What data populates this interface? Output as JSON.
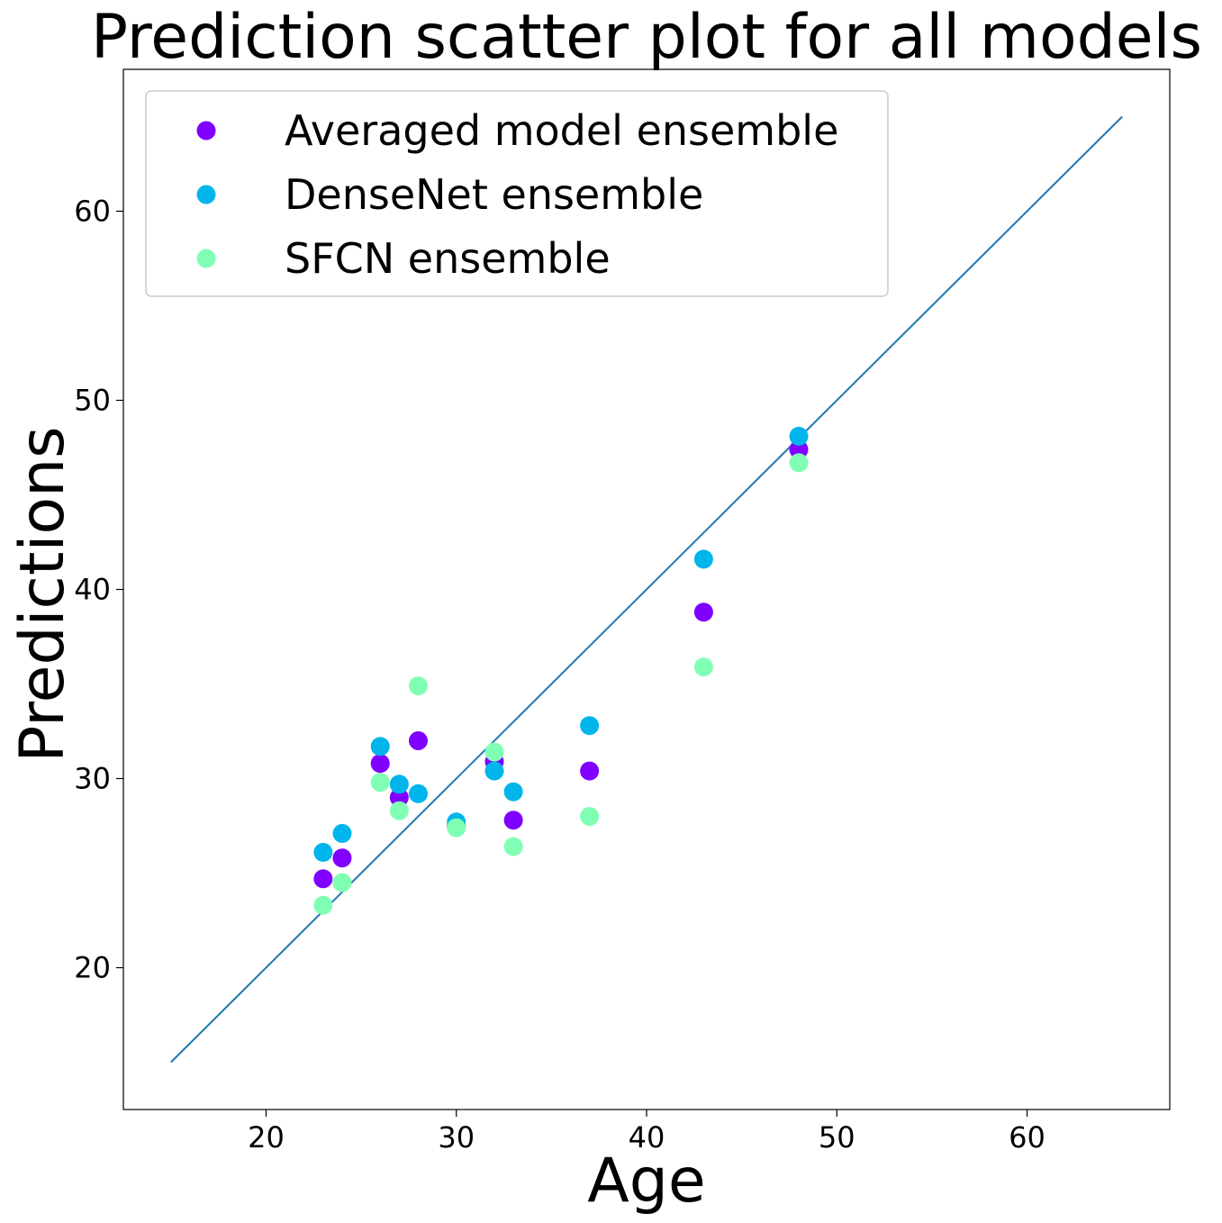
{
  "chart_data": {
    "type": "scatter",
    "title": "Prediction scatter plot for all models",
    "xlabel": "Age",
    "ylabel": "Predictions",
    "xlim": [
      12.5,
      67.5
    ],
    "ylim": [
      12.5,
      67.5
    ],
    "xticks": [
      20,
      30,
      40,
      50,
      60
    ],
    "yticks": [
      20,
      30,
      40,
      50,
      60
    ],
    "grid": false,
    "legend_position": "top-left",
    "reference_line": {
      "x": [
        15,
        65
      ],
      "y": [
        15,
        65
      ],
      "color": "#1f77b4"
    },
    "series": [
      {
        "name": "Averaged model ensemble",
        "color": "#8000ff",
        "x": [
          23,
          24,
          26,
          27,
          28,
          30,
          32,
          33,
          37,
          43,
          48
        ],
        "y": [
          24.7,
          25.8,
          30.8,
          29.0,
          32.0,
          27.5,
          30.9,
          27.8,
          30.4,
          38.8,
          47.4
        ]
      },
      {
        "name": "DenseNet ensemble",
        "color": "#00b5eb",
        "x": [
          23,
          24,
          26,
          27,
          28,
          30,
          32,
          33,
          37,
          43,
          48
        ],
        "y": [
          26.1,
          27.1,
          31.7,
          29.7,
          29.2,
          27.7,
          30.4,
          29.3,
          32.8,
          41.6,
          48.1
        ]
      },
      {
        "name": "SFCN ensemble",
        "color": "#80ffb4",
        "x": [
          23,
          24,
          26,
          27,
          28,
          30,
          32,
          33,
          37,
          43,
          48
        ],
        "y": [
          23.3,
          24.5,
          29.8,
          28.3,
          34.9,
          27.4,
          31.4,
          26.4,
          28.0,
          35.9,
          46.7
        ]
      }
    ]
  }
}
